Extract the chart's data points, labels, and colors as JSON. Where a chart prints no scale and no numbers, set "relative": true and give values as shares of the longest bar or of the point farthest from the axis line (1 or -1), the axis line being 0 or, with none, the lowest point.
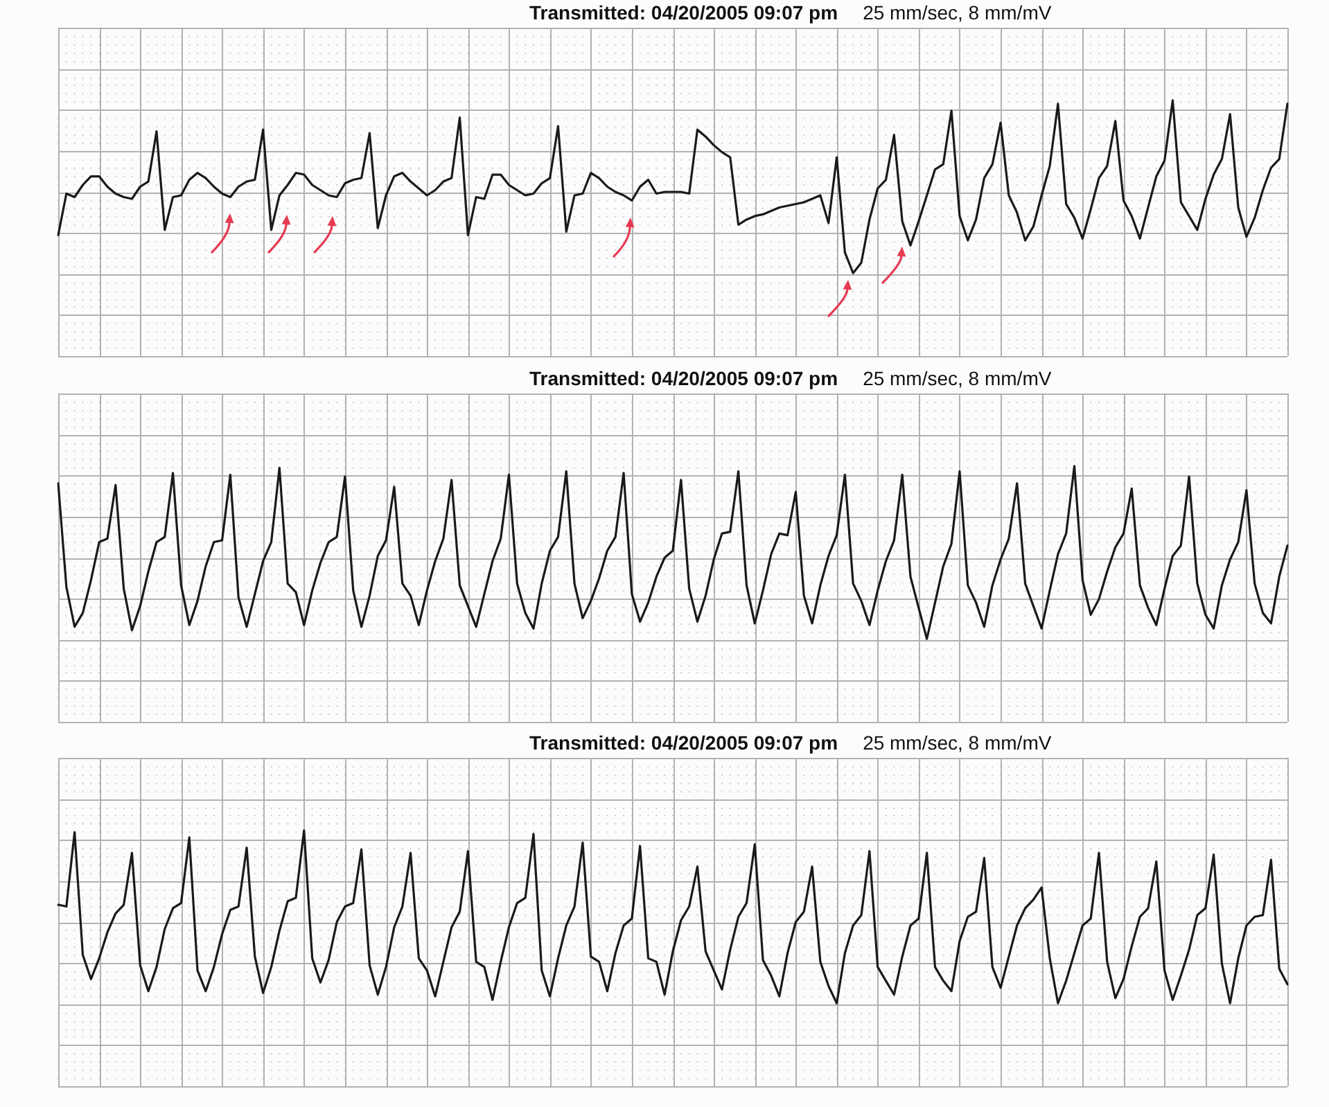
{
  "chart_data": [
    {
      "type": "line",
      "title": "Transmitted: 04/20/2005 09:07 pm",
      "subtitle": "25 mm/sec, 8 mm/mV",
      "relative": true,
      "grid": true,
      "color": "#1a1a1a",
      "categories": [
        null,
        null,
        null,
        null,
        null,
        null,
        null,
        null,
        null,
        null,
        null,
        null,
        null,
        null,
        null,
        null,
        null,
        null,
        null,
        null,
        null,
        null,
        null,
        null,
        null,
        null,
        null,
        null,
        null,
        null,
        null,
        null,
        null,
        null,
        null,
        null,
        null,
        null,
        null,
        null,
        null,
        null,
        null,
        null,
        null,
        null,
        null,
        null,
        null,
        null,
        null,
        null,
        null,
        null,
        null,
        null,
        null,
        null,
        null,
        null,
        null,
        null,
        null,
        null,
        null,
        null,
        null,
        null,
        null,
        null,
        null,
        null,
        null,
        null,
        null,
        null,
        null,
        null,
        null,
        null,
        null,
        null,
        null,
        null,
        null,
        null,
        null,
        null,
        null,
        null,
        null,
        null,
        null,
        null,
        null,
        null,
        null,
        null,
        null,
        null,
        null,
        null,
        null,
        null,
        null,
        null,
        null,
        null,
        null,
        null,
        null,
        null,
        null,
        null,
        null,
        null,
        null,
        null,
        null,
        null,
        null,
        null,
        null,
        null,
        null,
        null,
        null,
        null,
        null,
        null,
        null,
        null,
        null,
        null,
        null,
        null,
        null,
        null,
        null,
        null,
        null,
        null,
        null,
        null,
        null,
        null,
        null,
        null,
        null,
        null,
        null
      ],
      "values": [
        0.22,
        0.46,
        0.44,
        0.51,
        0.56,
        0.56,
        0.5,
        0.46,
        0.44,
        0.43,
        0.5,
        0.53,
        0.82,
        0.25,
        0.44,
        0.45,
        0.54,
        0.58,
        0.55,
        0.5,
        0.46,
        0.44,
        0.5,
        0.53,
        0.54,
        0.83,
        0.25,
        0.45,
        0.51,
        0.58,
        0.57,
        0.51,
        0.48,
        0.45,
        0.44,
        0.52,
        0.54,
        0.55,
        0.81,
        0.26,
        0.45,
        0.56,
        0.58,
        0.53,
        0.49,
        0.45,
        0.48,
        0.53,
        0.55,
        0.9,
        0.22,
        0.44,
        0.43,
        0.57,
        0.57,
        0.51,
        0.48,
        0.45,
        0.46,
        0.52,
        0.55,
        0.85,
        0.24,
        0.45,
        0.46,
        0.58,
        0.55,
        0.5,
        0.47,
        0.45,
        0.42,
        0.5,
        0.54,
        0.46,
        0.47,
        0.47,
        0.47,
        0.46,
        0.83,
        0.79,
        0.74,
        0.7,
        0.67,
        0.28,
        0.31,
        0.33,
        0.34,
        0.36,
        0.38,
        0.39,
        0.4,
        0.41,
        0.43,
        0.45,
        0.29,
        0.67,
        0.12,
        0,
        0.06,
        0.31,
        0.49,
        0.54,
        0.8,
        0.3,
        0.16,
        0.3,
        0.45,
        0.6,
        0.63,
        0.94,
        0.33,
        0.19,
        0.31,
        0.55,
        0.63,
        0.87,
        0.45,
        0.35,
        0.19,
        0.27,
        0.45,
        0.62,
        0.98,
        0.4,
        0.32,
        0.2,
        0.37,
        0.55,
        0.62,
        0.88,
        0.42,
        0.33,
        0.2,
        0.38,
        0.56,
        0.65,
        1,
        0.41,
        0.33,
        0.25,
        0.43,
        0.57,
        0.66,
        0.92,
        0.38,
        0.21,
        0.32,
        0.48,
        0.61,
        0.66,
        0.98
      ]
    },
    {
      "type": "line",
      "title": "Transmitted: 04/20/2005 09:07 pm",
      "subtitle": "25 mm/sec, 8 mm/mV",
      "relative": true,
      "grid": true,
      "color": "#1a1a1a",
      "categories": [
        null,
        null,
        null,
        null,
        null,
        null,
        null,
        null,
        null,
        null,
        null,
        null,
        null,
        null,
        null,
        null,
        null,
        null,
        null,
        null,
        null,
        null,
        null,
        null,
        null,
        null,
        null,
        null,
        null,
        null,
        null,
        null,
        null,
        null,
        null,
        null,
        null,
        null,
        null,
        null,
        null,
        null,
        null,
        null,
        null,
        null,
        null,
        null,
        null,
        null,
        null,
        null,
        null,
        null,
        null,
        null,
        null,
        null,
        null,
        null,
        null,
        null,
        null,
        null,
        null,
        null,
        null,
        null,
        null,
        null,
        null,
        null,
        null,
        null,
        null,
        null,
        null,
        null,
        null,
        null,
        null,
        null,
        null,
        null,
        null,
        null,
        null,
        null,
        null,
        null,
        null,
        null,
        null,
        null,
        null,
        null,
        null,
        null,
        null,
        null,
        null,
        null,
        null,
        null,
        null,
        null,
        null,
        null,
        null,
        null,
        null,
        null,
        null,
        null,
        null,
        null,
        null,
        null,
        null,
        null,
        null,
        null,
        null,
        null,
        null,
        null,
        null,
        null,
        null,
        null,
        null,
        null,
        null,
        null,
        null,
        null,
        null,
        null,
        null,
        null,
        null,
        null,
        null,
        null,
        null,
        null,
        null,
        null,
        null,
        null,
        null
      ],
      "values": [
        0.9,
        0.3,
        0.07,
        0.15,
        0.34,
        0.56,
        0.58,
        0.89,
        0.29,
        0.05,
        0.19,
        0.39,
        0.56,
        0.59,
        0.96,
        0.31,
        0.08,
        0.22,
        0.42,
        0.56,
        0.57,
        0.95,
        0.24,
        0.07,
        0.26,
        0.45,
        0.56,
        0.99,
        0.32,
        0.27,
        0.08,
        0.28,
        0.44,
        0.56,
        0.59,
        0.94,
        0.28,
        0.07,
        0.25,
        0.48,
        0.57,
        0.88,
        0.32,
        0.25,
        0.08,
        0.28,
        0.45,
        0.58,
        0.92,
        0.31,
        0.19,
        0.07,
        0.26,
        0.45,
        0.58,
        0.95,
        0.32,
        0.15,
        0.06,
        0.32,
        0.51,
        0.59,
        0.97,
        0.32,
        0.12,
        0.22,
        0.35,
        0.51,
        0.59,
        0.96,
        0.26,
        0.1,
        0.21,
        0.36,
        0.47,
        0.51,
        0.92,
        0.29,
        0.1,
        0.25,
        0.46,
        0.61,
        0.62,
        0.97,
        0.31,
        0.09,
        0.28,
        0.49,
        0.61,
        0.6,
        0.85,
        0.25,
        0.09,
        0.31,
        0.48,
        0.6,
        0.95,
        0.32,
        0.22,
        0.08,
        0.28,
        0.45,
        0.57,
        0.95,
        0.36,
        0.18,
        0,
        0.21,
        0.42,
        0.55,
        0.97,
        0.31,
        0.21,
        0.07,
        0.31,
        0.46,
        0.58,
        0.9,
        0.32,
        0.19,
        0.06,
        0.28,
        0.49,
        0.61,
        1,
        0.34,
        0.14,
        0.23,
        0.39,
        0.53,
        0.61,
        0.87,
        0.31,
        0.18,
        0.08,
        0.29,
        0.48,
        0.54,
        0.94,
        0.32,
        0.14,
        0.06,
        0.31,
        0.46,
        0.56,
        0.86,
        0.32,
        0.15,
        0.09,
        0.36,
        0.54
      ]
    },
    {
      "type": "line",
      "title": "Transmitted: 04/20/2005 09:07 pm",
      "subtitle": "25 mm/sec, 8 mm/mV",
      "relative": true,
      "grid": true,
      "color": "#1a1a1a",
      "categories": [
        null,
        null,
        null,
        null,
        null,
        null,
        null,
        null,
        null,
        null,
        null,
        null,
        null,
        null,
        null,
        null,
        null,
        null,
        null,
        null,
        null,
        null,
        null,
        null,
        null,
        null,
        null,
        null,
        null,
        null,
        null,
        null,
        null,
        null,
        null,
        null,
        null,
        null,
        null,
        null,
        null,
        null,
        null,
        null,
        null,
        null,
        null,
        null,
        null,
        null,
        null,
        null,
        null,
        null,
        null,
        null,
        null,
        null,
        null,
        null,
        null,
        null,
        null,
        null,
        null,
        null,
        null,
        null,
        null,
        null,
        null,
        null,
        null,
        null,
        null,
        null,
        null,
        null,
        null,
        null,
        null,
        null,
        null,
        null,
        null,
        null,
        null,
        null,
        null,
        null,
        null,
        null,
        null,
        null,
        null,
        null,
        null,
        null,
        null,
        null,
        null,
        null,
        null,
        null,
        null,
        null,
        null,
        null,
        null,
        null,
        null,
        null,
        null,
        null,
        null,
        null,
        null,
        null,
        null,
        null,
        null,
        null,
        null,
        null,
        null,
        null,
        null,
        null,
        null,
        null,
        null,
        null,
        null,
        null,
        null,
        null,
        null,
        null,
        null,
        null,
        null,
        null,
        null,
        null,
        null,
        null,
        null,
        null,
        null,
        null,
        null
      ],
      "values": [
        0.57,
        0.56,
        0.99,
        0.28,
        0.14,
        0.26,
        0.41,
        0.52,
        0.57,
        0.87,
        0.22,
        0.07,
        0.21,
        0.43,
        0.55,
        0.58,
        0.96,
        0.19,
        0.07,
        0.21,
        0.4,
        0.54,
        0.56,
        0.9,
        0.27,
        0.06,
        0.21,
        0.42,
        0.59,
        0.61,
        1,
        0.26,
        0.12,
        0.25,
        0.47,
        0.56,
        0.58,
        0.89,
        0.22,
        0.05,
        0.21,
        0.44,
        0.56,
        0.87,
        0.26,
        0.19,
        0.04,
        0.24,
        0.44,
        0.53,
        0.88,
        0.24,
        0.21,
        0.02,
        0.24,
        0.44,
        0.58,
        0.61,
        0.98,
        0.19,
        0.04,
        0.26,
        0.45,
        0.56,
        0.93,
        0.27,
        0.24,
        0.07,
        0.29,
        0.45,
        0.49,
        0.91,
        0.26,
        0.24,
        0.05,
        0.3,
        0.48,
        0.56,
        0.79,
        0.3,
        0.19,
        0.08,
        0.31,
        0.5,
        0.58,
        0.92,
        0.25,
        0.16,
        0.04,
        0.29,
        0.47,
        0.53,
        0.79,
        0.24,
        0.1,
        0,
        0.29,
        0.45,
        0.51,
        0.88,
        0.21,
        0.13,
        0.05,
        0.27,
        0.45,
        0.49,
        0.87,
        0.21,
        0.13,
        0.07,
        0.36,
        0.5,
        0.53,
        0.84,
        0.21,
        0.09,
        0.27,
        0.45,
        0.55,
        0.6,
        0.67,
        0.26,
        0,
        0.13,
        0.29,
        0.45,
        0.49,
        0.87,
        0.24,
        0.03,
        0.14,
        0.33,
        0.5,
        0.55,
        0.82,
        0.19,
        0.02,
        0.16,
        0.31,
        0.51,
        0.55,
        0.86,
        0.23,
        0,
        0.26,
        0.45,
        0.5,
        0.51,
        0.83,
        0.2,
        0.11
      ]
    }
  ]
}
